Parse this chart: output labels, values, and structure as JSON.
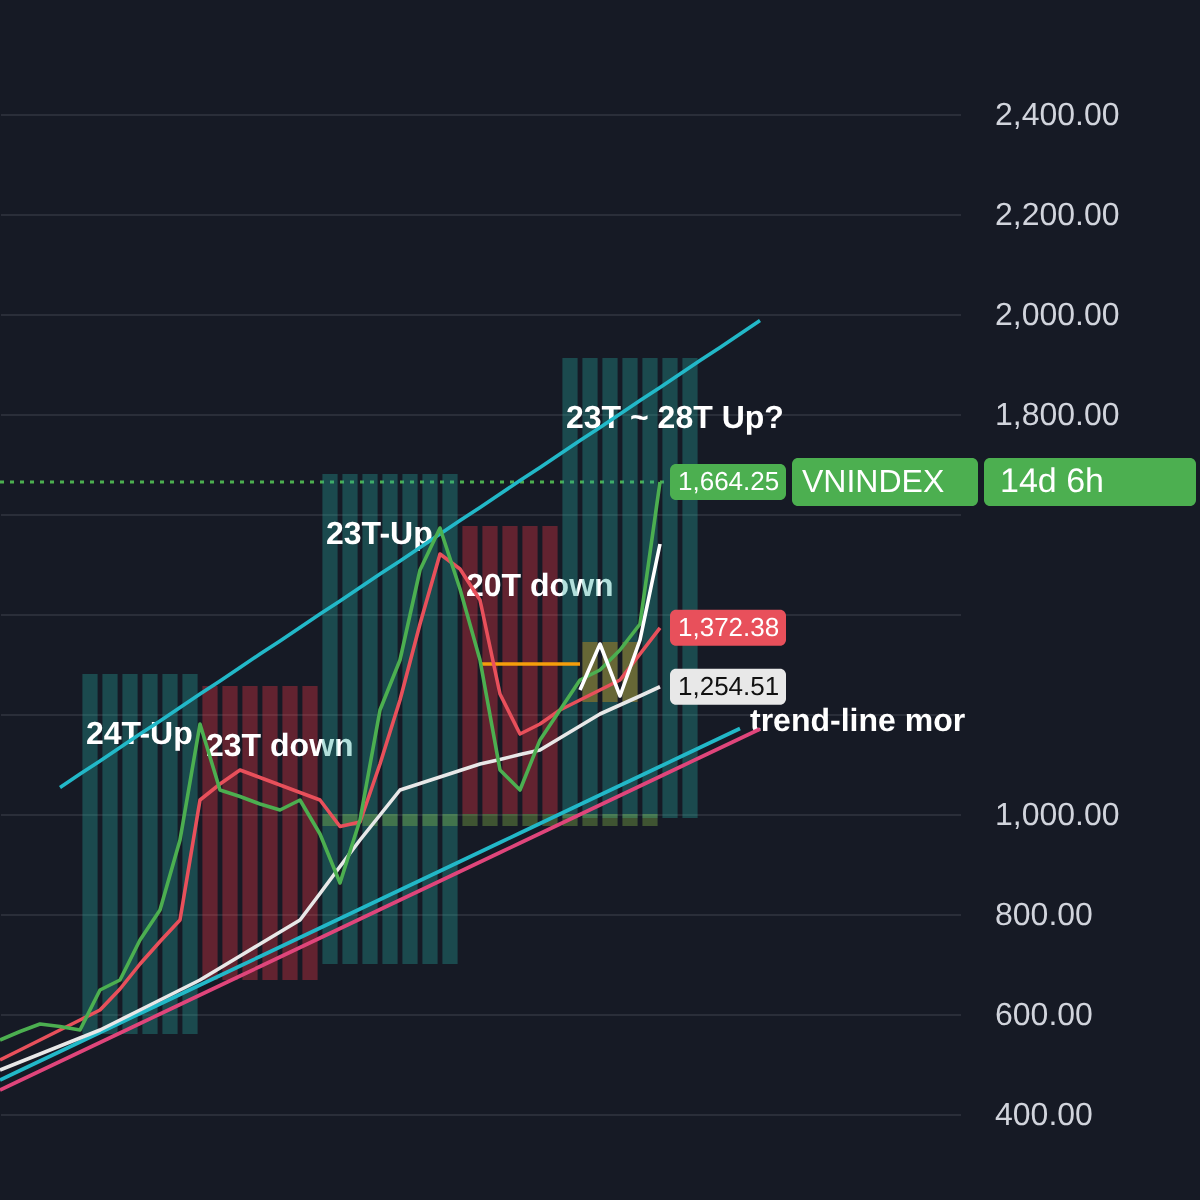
{
  "chart_data": {
    "type": "line",
    "categories": [
      null,
      null,
      null,
      null,
      null,
      null,
      null,
      null,
      null,
      null,
      null,
      null,
      null,
      null,
      null,
      null,
      null,
      null,
      null,
      null,
      null,
      null,
      null,
      null,
      null,
      null,
      null,
      null,
      null,
      null,
      null,
      null,
      null,
      null,
      null,
      null,
      null,
      null,
      null,
      null,
      null,
      null,
      null,
      null,
      null,
      null,
      null,
      null
    ],
    "ylim": [
      228,
      2628
    ],
    "yticks": [
      {
        "value": 400,
        "label": "400.00"
      },
      {
        "value": 600,
        "label": "600.00"
      },
      {
        "value": 800,
        "label": "800.00"
      },
      {
        "value": 1000,
        "label": "1,000.00"
      },
      {
        "value": 1200,
        "label": null
      },
      {
        "value": 1400,
        "label": null
      },
      {
        "value": 1600,
        "label": null
      },
      {
        "value": 1800,
        "label": "1,800.00"
      },
      {
        "value": 2000,
        "label": "2,000.00"
      },
      {
        "value": 2200,
        "label": "2,200.00"
      },
      {
        "value": 2400,
        "label": "2,400.00"
      }
    ],
    "grid": "y",
    "tick_labels": "y",
    "series": [
      {
        "type": "bar",
        "name": "24T-Up",
        "color": "#26a69a",
        "values": [
          null,
          null,
          null,
          null,
          720,
          720,
          720,
          720,
          720,
          720,
          null,
          null,
          null,
          null,
          null,
          null,
          null,
          null,
          null,
          null,
          null,
          null,
          null,
          null,
          null,
          null,
          null,
          null,
          null,
          null,
          null,
          null,
          null,
          null,
          null,
          null,
          null,
          null,
          null,
          null,
          null,
          null,
          null,
          null,
          null,
          null,
          null,
          null
        ],
        "base": [
          null,
          null,
          null,
          null,
          560,
          560,
          560,
          560,
          560,
          560,
          null,
          null,
          null,
          null,
          null,
          null,
          null,
          null,
          null,
          null,
          null,
          null,
          null,
          null,
          null,
          null,
          null,
          null,
          null,
          null,
          null,
          null,
          null,
          null,
          null,
          null,
          null,
          null,
          null,
          null,
          null,
          null,
          null,
          null,
          null,
          null,
          null,
          null
        ]
      },
      {
        "type": "bar",
        "name": "23T down",
        "color": "#f23645",
        "values": [
          null,
          null,
          null,
          null,
          null,
          null,
          null,
          null,
          null,
          null,
          588,
          588,
          588,
          588,
          588,
          588,
          null,
          null,
          null,
          null,
          null,
          null,
          null,
          null,
          null,
          null,
          null,
          null,
          null,
          null,
          null,
          null,
          null,
          null,
          null,
          null,
          null,
          null,
          null,
          null,
          null,
          null,
          null,
          null,
          null,
          null,
          null,
          null
        ],
        "base": [
          null,
          null,
          null,
          null,
          null,
          null,
          null,
          null,
          null,
          null,
          668,
          668,
          668,
          668,
          668,
          668,
          null,
          null,
          null,
          null,
          null,
          null,
          null,
          null,
          null,
          null,
          null,
          null,
          null,
          null,
          null,
          null,
          null,
          null,
          null,
          null,
          null,
          null,
          null,
          null,
          null,
          null,
          null,
          null,
          null,
          null,
          null,
          null
        ]
      },
      {
        "type": "bar",
        "name": "23T-Up",
        "color": "#26a69a",
        "values": [
          null,
          null,
          null,
          null,
          null,
          null,
          null,
          null,
          null,
          null,
          null,
          null,
          null,
          null,
          null,
          null,
          980,
          980,
          980,
          980,
          980,
          980,
          980,
          null,
          null,
          null,
          null,
          null,
          null,
          null,
          null,
          null,
          null,
          null,
          null,
          null,
          null,
          null,
          null,
          null,
          null,
          null,
          null,
          null,
          null,
          null,
          null,
          null
        ],
        "base": [
          null,
          null,
          null,
          null,
          null,
          null,
          null,
          null,
          null,
          null,
          null,
          null,
          null,
          null,
          null,
          null,
          700,
          700,
          700,
          700,
          700,
          700,
          700,
          null,
          null,
          null,
          null,
          null,
          null,
          null,
          null,
          null,
          null,
          null,
          null,
          null,
          null,
          null,
          null,
          null,
          null,
          null,
          null,
          null,
          null,
          null,
          null,
          null
        ]
      },
      {
        "type": "bar",
        "name": "20T down",
        "color": "#f23645",
        "values": [
          null,
          null,
          null,
          null,
          null,
          null,
          null,
          null,
          null,
          null,
          null,
          null,
          null,
          null,
          null,
          null,
          null,
          null,
          null,
          null,
          null,
          null,
          null,
          576,
          576,
          576,
          576,
          576,
          null,
          null,
          null,
          null,
          null,
          null,
          null,
          null,
          null,
          null,
          null,
          null,
          null,
          null,
          null,
          null,
          null,
          null,
          null,
          null
        ],
        "base": [
          null,
          null,
          null,
          null,
          null,
          null,
          null,
          null,
          null,
          null,
          null,
          null,
          null,
          null,
          null,
          null,
          null,
          null,
          null,
          null,
          null,
          null,
          null,
          1000,
          1000,
          1000,
          1000,
          1000,
          null,
          null,
          null,
          null,
          null,
          null,
          null,
          null,
          null,
          null,
          null,
          null,
          null,
          null,
          null,
          null,
          null,
          null,
          null,
          null
        ]
      },
      {
        "type": "bar",
        "name": "23T ~ 28T Up?",
        "color": "#26a69a",
        "values": [
          null,
          null,
          null,
          null,
          null,
          null,
          null,
          null,
          null,
          null,
          null,
          null,
          null,
          null,
          null,
          null,
          null,
          null,
          null,
          null,
          null,
          null,
          null,
          null,
          null,
          null,
          null,
          null,
          920,
          920,
          920,
          920,
          920,
          920,
          920,
          null,
          null,
          null,
          null,
          null,
          null,
          null,
          null,
          null,
          null,
          null,
          null,
          null
        ],
        "base": [
          null,
          null,
          null,
          null,
          null,
          null,
          null,
          null,
          null,
          null,
          null,
          null,
          null,
          null,
          null,
          null,
          null,
          null,
          null,
          null,
          null,
          null,
          null,
          null,
          null,
          null,
          null,
          null,
          992,
          992,
          992,
          992,
          992,
          992,
          992,
          null,
          null,
          null,
          null,
          null,
          null,
          null,
          null,
          null,
          null,
          null,
          null,
          null
        ]
      },
      {
        "type": "bar",
        "color": "#8bc34a",
        "values": [
          null,
          null,
          null,
          null,
          null,
          null,
          null,
          null,
          null,
          null,
          null,
          null,
          null,
          null,
          null,
          null,
          24,
          24,
          24,
          24,
          24,
          24,
          24,
          24,
          24,
          24,
          24,
          24,
          24,
          24,
          24,
          24,
          24,
          null,
          null,
          null,
          null,
          null,
          null,
          null,
          null,
          null,
          null,
          null,
          null,
          null,
          null,
          null
        ],
        "base": [
          null,
          null,
          null,
          null,
          null,
          null,
          null,
          null,
          null,
          null,
          null,
          null,
          null,
          null,
          null,
          null,
          976,
          976,
          976,
          976,
          976,
          976,
          976,
          976,
          976,
          976,
          976,
          976,
          976,
          976,
          976,
          976,
          976,
          null,
          null,
          null,
          null,
          null,
          null,
          null,
          null,
          null,
          null,
          null,
          null,
          null,
          null,
          null
        ]
      },
      {
        "type": "bar",
        "color": "#f59e0b",
        "values": [
          null,
          null,
          null,
          null,
          null,
          null,
          null,
          null,
          null,
          null,
          null,
          null,
          null,
          null,
          null,
          null,
          null,
          null,
          null,
          null,
          null,
          null,
          null,
          null,
          null,
          null,
          null,
          null,
          null,
          120,
          120,
          120,
          null,
          null,
          null,
          null,
          null,
          null,
          null,
          null,
          null,
          null,
          null,
          null,
          null,
          null,
          null,
          null
        ],
        "base": [
          null,
          null,
          null,
          null,
          null,
          null,
          null,
          null,
          null,
          null,
          null,
          null,
          null,
          null,
          null,
          null,
          null,
          null,
          null,
          null,
          null,
          null,
          null,
          null,
          null,
          null,
          null,
          null,
          null,
          1224,
          1224,
          1224,
          null,
          null,
          null,
          null,
          null,
          null,
          null,
          null,
          null,
          null,
          null,
          null,
          null,
          null,
          null,
          null
        ]
      },
      {
        "color": "#f59e0b",
        "values": [
          null,
          null,
          null,
          null,
          null,
          null,
          null,
          null,
          null,
          null,
          null,
          null,
          null,
          null,
          null,
          null,
          null,
          null,
          null,
          null,
          null,
          null,
          null,
          null,
          1300,
          1300,
          1300,
          1300,
          1300,
          1300,
          null,
          null,
          null,
          null,
          null,
          null,
          null,
          null,
          null,
          null,
          null,
          null,
          null,
          null,
          null,
          null,
          null,
          null
        ]
      },
      {
        "color": "#22b8c8",
        "values": [
          null,
          null,
          null,
          1053,
          1080,
          1106,
          1133,
          1160,
          1186,
          1213,
          1240,
          1266,
          1293,
          1320,
          1346,
          1373,
          1400,
          1426,
          1453,
          1480,
          1506,
          1533,
          1560,
          1587,
          1613,
          1640,
          1667,
          1693,
          1720,
          1747,
          1773,
          1800,
          1827,
          1853,
          1880,
          1907,
          1933,
          1960,
          1987,
          null,
          null,
          null,
          null,
          null,
          null,
          null,
          null,
          null
        ]
      },
      {
        "name": "trend-line mor",
        "color": "#22b8c8",
        "values": [
          468,
          487,
          506,
          525,
          544,
          563,
          582,
          601,
          620,
          639,
          658,
          677,
          696,
          715,
          734,
          753,
          772,
          791,
          810,
          829,
          848,
          867,
          886,
          905,
          924,
          943,
          962,
          981,
          1000,
          1019,
          1038,
          1057,
          1076,
          1095,
          1114,
          1133,
          1152,
          1171,
          null,
          null,
          null,
          null,
          null,
          null,
          null,
          null,
          null,
          null
        ]
      },
      {
        "color": "#e0457b",
        "values": [
          448,
          467,
          486,
          505,
          524,
          543,
          562,
          581,
          600,
          619,
          638,
          657,
          676,
          695,
          714,
          733,
          752,
          771,
          790,
          809,
          828,
          847,
          866,
          885,
          904,
          923,
          942,
          961,
          980,
          999,
          1018,
          1037,
          1056,
          1075,
          1094,
          1113,
          1132,
          1151,
          1170,
          null,
          null,
          null,
          null,
          null,
          null,
          null,
          null,
          null
        ]
      },
      {
        "color": "#e8e8e8",
        "values": [
          488,
          504,
          520,
          536,
          552,
          568,
          588,
          608,
          628,
          648,
          668,
          692,
          716,
          740,
          764,
          788,
          841,
          895,
          948,
          998,
          1048,
          1061,
          1074,
          1087,
          1100,
          1109,
          1119,
          1128,
          1152,
          1176,
          1200,
          1218,
          1236,
          1254.51,
          null,
          null,
          null,
          null,
          null,
          null,
          null,
          null,
          null,
          null,
          null,
          null,
          null,
          null
        ],
        "value_labels": [
          null,
          null,
          null,
          null,
          null,
          null,
          null,
          null,
          null,
          null,
          null,
          null,
          null,
          null,
          null,
          null,
          null,
          null,
          null,
          null,
          null,
          null,
          null,
          null,
          null,
          null,
          null,
          null,
          null,
          null,
          null,
          null,
          null,
          "1,254.51",
          null,
          null,
          null,
          null,
          null,
          null,
          null,
          null,
          null,
          null,
          null,
          null,
          null,
          null
        ]
      },
      {
        "color": "#e8505b",
        "values": [
          508,
          528,
          548,
          568,
          588,
          608,
          650,
          700,
          745,
          788,
          1028,
          1060,
          1088,
          1073,
          1058,
          1043,
          1028,
          975,
          984,
          1100,
          1228,
          1380,
          1520,
          1490,
          1428,
          1240,
          1160,
          1180,
          1208,
          1228,
          1248,
          1268,
          1320,
          1372.38,
          null,
          null,
          null,
          null,
          null,
          null,
          null,
          null,
          null,
          null,
          null,
          null,
          null,
          null
        ],
        "value_labels": [
          null,
          null,
          null,
          null,
          null,
          null,
          null,
          null,
          null,
          null,
          null,
          null,
          null,
          null,
          null,
          null,
          null,
          null,
          null,
          null,
          null,
          null,
          null,
          null,
          null,
          null,
          null,
          null,
          null,
          null,
          null,
          null,
          null,
          "1,372.38",
          null,
          null,
          null,
          null,
          null,
          null,
          null,
          null,
          null,
          null,
          null,
          null,
          null,
          null
        ]
      },
      {
        "color": "#4caf50",
        "values": [
          548,
          565,
          580,
          575,
          568,
          648,
          668,
          748,
          808,
          948,
          1180,
          1048,
          1035,
          1020,
          1008,
          1028,
          960,
          862,
          988,
          1208,
          1308,
          1488,
          1572,
          1450,
          1308,
          1088,
          1048,
          1148,
          1208,
          1268,
          1288,
          1328,
          1380,
          1664.25,
          null,
          null,
          null,
          null,
          null,
          null,
          null,
          null,
          null,
          null,
          null,
          null,
          null,
          null
        ],
        "value_labels": [
          null,
          null,
          null,
          null,
          null,
          null,
          null,
          null,
          null,
          null,
          null,
          null,
          null,
          null,
          null,
          null,
          null,
          null,
          null,
          null,
          null,
          null,
          null,
          null,
          null,
          null,
          null,
          null,
          null,
          null,
          null,
          null,
          null,
          "1,664.25",
          null,
          null,
          null,
          null,
          null,
          null,
          null,
          null,
          null,
          null,
          null,
          null,
          null,
          null
        ]
      },
      {
        "color": "#ffffff",
        "values": [
          null,
          null,
          null,
          null,
          null,
          null,
          null,
          null,
          null,
          null,
          null,
          null,
          null,
          null,
          null,
          null,
          null,
          null,
          null,
          null,
          null,
          null,
          null,
          null,
          null,
          null,
          null,
          null,
          null,
          1248,
          1340,
          1236,
          1348,
          1540,
          null,
          null,
          null,
          null,
          null,
          null,
          null,
          null,
          null,
          null,
          null,
          null,
          null,
          null
        ]
      }
    ],
    "ref_lines": [
      {
        "axis": "y",
        "value": 1664.25,
        "label": "VNINDEX",
        "color": "#4caf50",
        "line_style": "dotted"
      }
    ],
    "annotations": [
      "14d 6h"
    ]
  }
}
